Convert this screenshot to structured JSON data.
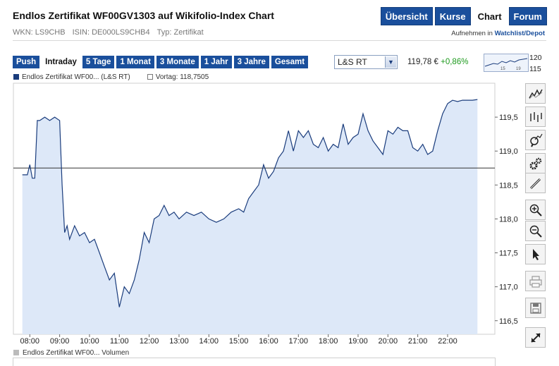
{
  "header": {
    "title": "Endlos Zertifikat WF00GV1303 auf Wikifolio-Index Chart",
    "wkn": "WKN: LS9CHB",
    "isin": "ISIN: DE000LS9CHB4",
    "type": "Typ: Zertifikat",
    "watchlist_prefix": "Aufnehmen in",
    "watchlist_link": "Watchlist/Depot"
  },
  "nav_tabs": [
    {
      "label": "Übersicht",
      "active": false
    },
    {
      "label": "Kurse",
      "active": false
    },
    {
      "label": "Chart",
      "active": true
    },
    {
      "label": "Forum",
      "active": false
    }
  ],
  "ranges": [
    {
      "label": "Push",
      "active": false
    },
    {
      "label": "Intraday",
      "active": true
    },
    {
      "label": "5 Tage",
      "active": false
    },
    {
      "label": "1 Monat",
      "active": false
    },
    {
      "label": "3 Monate",
      "active": false
    },
    {
      "label": "1 Jahr",
      "active": false
    },
    {
      "label": "3 Jahre",
      "active": false
    },
    {
      "label": "Gesamt",
      "active": false
    }
  ],
  "exchange": {
    "selected": "L&S RT"
  },
  "quote": {
    "price": "119,78 €",
    "change": "+0,86%"
  },
  "mini_chart": {
    "high_label": "120",
    "low_label": "115",
    "tick1": "15",
    "tick2": "19"
  },
  "legend": {
    "series": "Endlos Zertifikat WF00... (L&S RT)",
    "prev": "Vortag: 118,7505"
  },
  "volume_legend": "Endlos Zertifikat WF00... Volumen",
  "tools": [
    {
      "name": "line-chart-icon"
    },
    {
      "name": "ohlc-chart-icon"
    },
    {
      "name": "zoom-chart-icon"
    },
    {
      "name": "settings-gears-icon"
    },
    {
      "name": "draw-pencil-icon"
    },
    {
      "name": "zoom-in-icon"
    },
    {
      "name": "zoom-out-icon"
    },
    {
      "name": "pointer-icon"
    },
    {
      "name": "print-icon"
    },
    {
      "name": "save-icon"
    },
    {
      "name": "fullscreen-icon"
    }
  ],
  "colors": {
    "accent": "#1a4f9c",
    "line": "#1a3c7c",
    "area": "#dbe6f7",
    "positive": "#1d9a1d"
  },
  "chart_data": {
    "type": "area",
    "ylim": [
      116.3,
      120.0
    ],
    "y_ticks": [
      "116,5",
      "117,0",
      "117,5",
      "118,0",
      "118,5",
      "119,0",
      "119,5"
    ],
    "y_tick_values": [
      116.5,
      117.0,
      117.5,
      118.0,
      118.5,
      119.0,
      119.5
    ],
    "x_ticks": [
      "08:00",
      "09:00",
      "10:00",
      "11:00",
      "12:00",
      "13:00",
      "14:00",
      "15:00",
      "16:00",
      "17:00",
      "18:00",
      "19:00",
      "20:00",
      "21:00",
      "22:00"
    ],
    "reference_line": 118.7505,
    "series": [
      {
        "x": [
          "07:45",
          "07:55",
          "08:00",
          "08:05",
          "08:10",
          "08:15",
          "08:20",
          "08:30",
          "08:40",
          "08:50",
          "09:00",
          "09:05",
          "09:10",
          "09:15",
          "09:20",
          "09:30",
          "09:40",
          "09:50",
          "10:00",
          "10:10",
          "10:20",
          "10:30",
          "10:40",
          "10:50",
          "11:00",
          "11:10",
          "11:20",
          "11:30",
          "11:40",
          "11:50",
          "12:00",
          "12:10",
          "12:20",
          "12:30",
          "12:40",
          "12:50",
          "13:00",
          "13:15",
          "13:30",
          "13:45",
          "14:00",
          "14:15",
          "14:30",
          "14:45",
          "15:00",
          "15:10",
          "15:20",
          "15:30",
          "15:40",
          "15:50",
          "16:00",
          "16:10",
          "16:20",
          "16:30",
          "16:40",
          "16:50",
          "17:00",
          "17:10",
          "17:20",
          "17:30",
          "17:40",
          "17:50",
          "18:00",
          "18:10",
          "18:20",
          "18:30",
          "18:40",
          "18:50",
          "19:00",
          "19:10",
          "19:20",
          "19:30",
          "19:40",
          "19:50",
          "20:00",
          "20:10",
          "20:20",
          "20:30",
          "20:40",
          "20:50",
          "21:00",
          "21:10",
          "21:20",
          "21:30",
          "21:40",
          "21:50",
          "22:00",
          "22:10",
          "22:20",
          "22:30",
          "22:40",
          "22:50",
          "23:00"
        ],
        "y": [
          118.65,
          118.65,
          118.8,
          118.6,
          118.6,
          119.45,
          119.45,
          119.5,
          119.45,
          119.5,
          119.45,
          118.5,
          117.8,
          117.9,
          117.7,
          117.9,
          117.75,
          117.8,
          117.65,
          117.7,
          117.5,
          117.3,
          117.1,
          117.2,
          116.7,
          117.0,
          116.9,
          117.1,
          117.4,
          117.8,
          117.65,
          118.0,
          118.05,
          118.2,
          118.05,
          118.1,
          118.0,
          118.1,
          118.05,
          118.1,
          118.0,
          117.95,
          118.0,
          118.1,
          118.15,
          118.1,
          118.3,
          118.4,
          118.5,
          118.8,
          118.6,
          118.7,
          118.9,
          119.0,
          119.3,
          119.0,
          119.3,
          119.2,
          119.3,
          119.1,
          119.05,
          119.2,
          119.0,
          119.1,
          119.05,
          119.4,
          119.1,
          119.2,
          119.25,
          119.55,
          119.3,
          119.15,
          119.05,
          118.95,
          119.3,
          119.25,
          119.35,
          119.3,
          119.3,
          119.05,
          119.0,
          119.1,
          118.95,
          119.0,
          119.3,
          119.55,
          119.7,
          119.75,
          119.73,
          119.75,
          119.75,
          119.75,
          119.76
        ]
      }
    ]
  }
}
